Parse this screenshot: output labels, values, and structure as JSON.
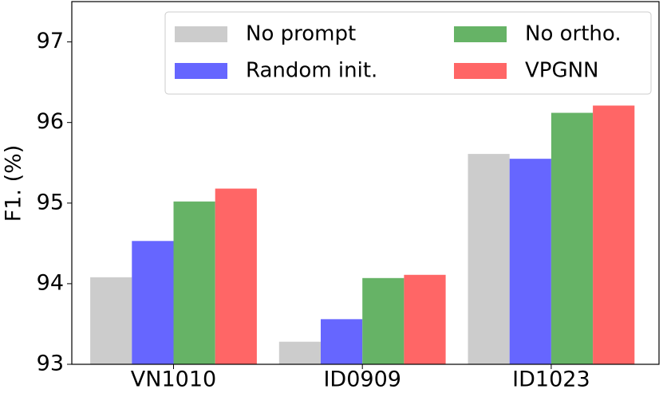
{
  "chart_data": {
    "type": "bar",
    "y_label": "F1. (%)",
    "categories": [
      "VN1010",
      "ID0909",
      "ID1023"
    ],
    "series": [
      {
        "name": "No prompt",
        "color": "#cccccc",
        "values": [
          94.08,
          93.28,
          95.61
        ]
      },
      {
        "name": "Random init.",
        "color": "#6666ff",
        "values": [
          94.53,
          93.56,
          95.55
        ]
      },
      {
        "name": "No ortho.",
        "color": "#66b366",
        "values": [
          95.02,
          94.07,
          96.12
        ]
      },
      {
        "name": "VPGNN",
        "color": "#ff6666",
        "values": [
          95.18,
          94.11,
          96.21
        ]
      }
    ],
    "ylim": [
      93,
      97.5
    ],
    "yticks": [
      93,
      94,
      95,
      96,
      97
    ],
    "legend": "upper right"
  }
}
